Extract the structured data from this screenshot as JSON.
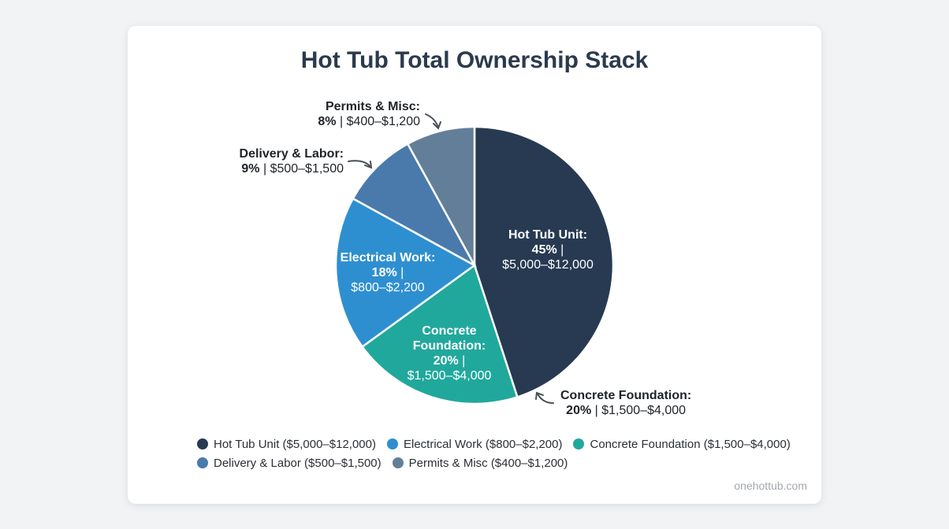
{
  "chart_data": {
    "type": "pie",
    "title": "Hot Tub Total Ownership Stack",
    "categories": [
      "Hot Tub Unit",
      "Concrete Foundation",
      "Electrical Work",
      "Delivery & Labor",
      "Permits & Misc"
    ],
    "values": [
      45,
      20,
      18,
      9,
      8
    ],
    "ranges": [
      "$5,000–$12,000",
      "$1,500–$4,000",
      "$800–$2,200",
      "$500–$1,500",
      "$400–$1,200"
    ],
    "colors": [
      "#273a52",
      "#21a89c",
      "#2e8fd0",
      "#4a7aab",
      "#637e98"
    ],
    "start_angle": "top, clockwise",
    "legend_position": "bottom"
  },
  "title": "Hot Tub Total Ownership Stack",
  "inner_labels": {
    "hot_tub": {
      "name": "Hot Tub Unit:",
      "pct": "45%",
      "sep": " |",
      "range": "$5,000–$12,000"
    },
    "electrical": {
      "name": "Electrical Work:",
      "pct": "18%",
      "sep": " |",
      "range": "$800–$2,200"
    },
    "concrete": {
      "name1": "Concrete",
      "name2": "Foundation:",
      "pct": "20%",
      "sep": " |",
      "range": "$1,500–$4,000"
    }
  },
  "outer_labels": {
    "permits": {
      "name": "Permits & Misc:",
      "pct": "8%",
      "rest": " | $400–$1,200"
    },
    "delivery": {
      "name": "Delivery & Labor:",
      "pct": "9%",
      "rest": " | $500–$1,500"
    },
    "concrete": {
      "name": "Concrete Foundation:",
      "pct": "20%",
      "rest": " | $1,500–$4,000"
    }
  },
  "legend": [
    {
      "label": "Hot Tub Unit ($5,000–$12,000)",
      "color": "#273a52"
    },
    {
      "label": "Electrical Work ($800–$2,200)",
      "color": "#2e8fd0"
    },
    {
      "label": "Concrete Foundation ($1,500–$4,000)",
      "color": "#21a89c"
    },
    {
      "label": "Delivery & Labor ($500–$1,500)",
      "color": "#4a7aab"
    },
    {
      "label": "Permits & Misc ($400–$1,200)",
      "color": "#637e98"
    }
  ],
  "footer": "onehottub.com"
}
